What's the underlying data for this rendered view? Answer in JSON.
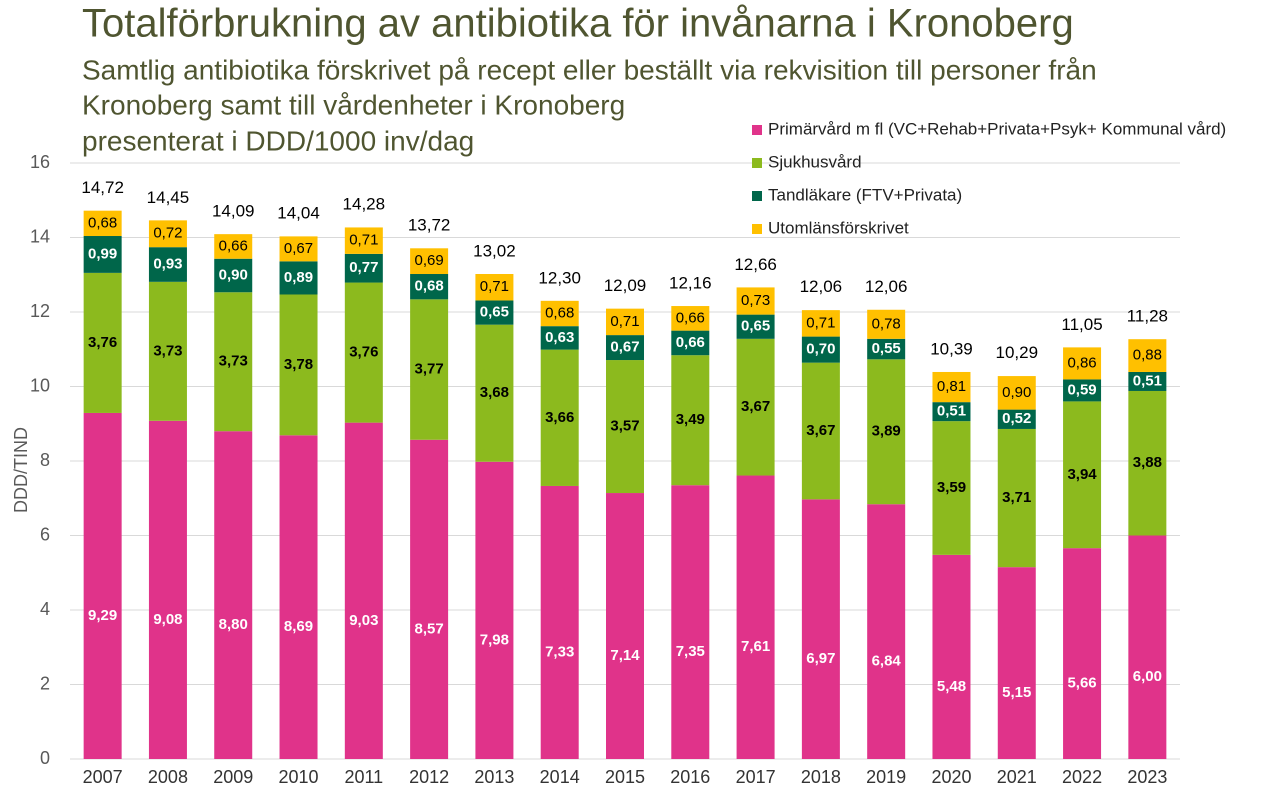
{
  "chart_data": {
    "type": "stacked_bar",
    "title": "Totalförbrukning av antibiotika för invånarna i Kronoberg",
    "subtitle": [
      "Samtlig antibiotika förskrivet på recept eller beställt via rekvisition till personer från",
      "Kronoberg samt till vårdenheter i Kronoberg",
      "presenterat i DDD/1000 inv/dag"
    ],
    "ylabel": "DDD/TIND",
    "categories": [
      "2007",
      "2008",
      "2009",
      "2010",
      "2011",
      "2012",
      "2013",
      "2014",
      "2015",
      "2016",
      "2017",
      "2018",
      "2019",
      "2020",
      "2021",
      "2022",
      "2023"
    ],
    "series": [
      {
        "name": "Primärvård m fl (VC+Rehab+Privata+Psyk+ Kommunal vård)",
        "color": "#e0338a",
        "label_color": "#ffffff",
        "values": [
          9.29,
          9.08,
          8.8,
          8.69,
          9.03,
          8.57,
          7.98,
          7.33,
          7.14,
          7.35,
          7.61,
          6.97,
          6.84,
          5.48,
          5.15,
          5.66,
          6.0
        ],
        "value_labels": [
          "9,29",
          "9,08",
          "8,80",
          "8,69",
          "9,03",
          "8,57",
          "7,98",
          "7,33",
          "7,14",
          "7,35",
          "7,61",
          "6,97",
          "6,84",
          "5,48",
          "5,15",
          "5,66",
          "6,00"
        ]
      },
      {
        "name": "Sjukhusvård",
        "color": "#8cba1e",
        "label_color": "#000000",
        "values": [
          3.76,
          3.73,
          3.73,
          3.78,
          3.76,
          3.77,
          3.68,
          3.66,
          3.57,
          3.49,
          3.67,
          3.67,
          3.89,
          3.59,
          3.71,
          3.94,
          3.88
        ],
        "value_labels": [
          "3,76",
          "3,73",
          "3,73",
          "3,78",
          "3,76",
          "3,77",
          "3,68",
          "3,66",
          "3,57",
          "3,49",
          "3,67",
          "3,67",
          "3,89",
          "3,59",
          "3,71",
          "3,94",
          "3,88"
        ]
      },
      {
        "name": "Tandläkare (FTV+Privata)",
        "color": "#00664a",
        "label_color": "#ffffff",
        "values": [
          0.99,
          0.93,
          0.9,
          0.89,
          0.77,
          0.68,
          0.65,
          0.63,
          0.67,
          0.66,
          0.65,
          0.7,
          0.55,
          0.51,
          0.52,
          0.59,
          0.51
        ],
        "value_labels": [
          "0,99",
          "0,93",
          "0,90",
          "0,89",
          "0,77",
          "0,68",
          "0,65",
          "0,63",
          "0,67",
          "0,66",
          "0,65",
          "0,70",
          "0,55",
          "0,51",
          "0,52",
          "0,59",
          "0,51"
        ]
      },
      {
        "name": "Utomlänsförskrivet",
        "color": "#ffc000",
        "label_color": "#000000",
        "values": [
          0.68,
          0.72,
          0.66,
          0.67,
          0.71,
          0.69,
          0.71,
          0.68,
          0.71,
          0.66,
          0.73,
          0.71,
          0.78,
          0.81,
          0.9,
          0.86,
          0.88
        ],
        "value_labels": [
          "0,68",
          "0,72",
          "0,66",
          "0,67",
          "0,71",
          "0,69",
          "0,71",
          "0,68",
          "0,71",
          "0,66",
          "0,73",
          "0,71",
          "0,78",
          "0,81",
          "0,90",
          "0,86",
          "0,88"
        ]
      }
    ],
    "totals": [
      14.72,
      14.45,
      14.09,
      14.04,
      14.28,
      13.72,
      13.02,
      12.3,
      12.09,
      12.16,
      12.66,
      12.06,
      12.06,
      10.39,
      10.29,
      11.05,
      11.28
    ],
    "total_labels": [
      "14,72",
      "14,45",
      "14,09",
      "14,04",
      "14,28",
      "13,72",
      "13,02",
      "12,30",
      "12,09",
      "12,16",
      "12,66",
      "12,06",
      "12,06",
      "10,39",
      "10,29",
      "11,05",
      "11,28"
    ],
    "ylim": [
      0,
      16
    ],
    "yticks": [
      0,
      2,
      4,
      6,
      8,
      10,
      12,
      14,
      16
    ],
    "grid": true,
    "legend": "upper right"
  }
}
